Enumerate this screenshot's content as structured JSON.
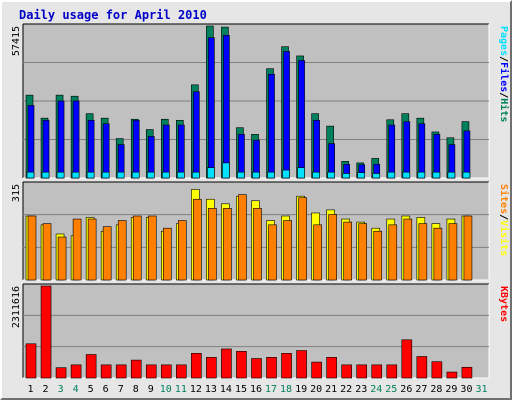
{
  "title": "Daily usage for April 2010",
  "colors": {
    "hits": "#00805c",
    "files": "#0000ff",
    "pages": "#00e0ff",
    "visits": "#ffff00",
    "sites": "#ff8000",
    "kbytes": "#ff0000",
    "plot_bg": "#c0c0c0",
    "weekend_label": "#00805c",
    "weekday_label": "#000000"
  },
  "legends": {
    "top": [
      {
        "label": "Pages",
        "color": "#00e0ff"
      },
      {
        "label": "/",
        "color": "#000000"
      },
      {
        "label": "Files",
        "color": "#0000ff"
      },
      {
        "label": "/",
        "color": "#000000"
      },
      {
        "label": "Hits",
        "color": "#00805c"
      }
    ],
    "middle": [
      {
        "label": "Sites",
        "color": "#ff8000"
      },
      {
        "label": "/",
        "color": "#000000"
      },
      {
        "label": "Visits",
        "color": "#ffff00"
      }
    ],
    "bottom": [
      {
        "label": "KBytes",
        "color": "#ff0000"
      }
    ]
  },
  "chart_data": {
    "type": "bar",
    "title": "Daily usage for April 2010",
    "categories": [
      "1",
      "2",
      "3",
      "4",
      "5",
      "6",
      "7",
      "8",
      "9",
      "10",
      "11",
      "12",
      "13",
      "14",
      "15",
      "16",
      "17",
      "18",
      "19",
      "20",
      "21",
      "22",
      "23",
      "24",
      "25",
      "26",
      "27",
      "28",
      "29",
      "30",
      "31"
    ],
    "weekend_days": [
      "3",
      "4",
      "10",
      "11",
      "17",
      "18",
      "24",
      "25",
      "31"
    ],
    "panels": [
      {
        "name": "top",
        "max_label": "57415",
        "ylim": [
          0,
          57415
        ],
        "series": [
          {
            "name": "Hits",
            "values": [
              31300,
              22600,
              31300,
              30900,
              24300,
              22600,
              14900,
              22200,
              18300,
              22200,
              21800,
              35200,
              57415,
              57000,
              19000,
              16500,
              41300,
              49600,
              46100,
              24300,
              19600,
              6300,
              5700,
              7400,
              22000,
              24300,
              22600,
              17400,
              15200,
              21300,
              0
            ]
          },
          {
            "name": "Files",
            "values": [
              27400,
              21800,
              29100,
              29100,
              21800,
              20500,
              12600,
              21800,
              15700,
              20000,
              20000,
              32600,
              53000,
              53900,
              16500,
              14300,
              39200,
              47800,
              44400,
              21800,
              13000,
              5200,
              5000,
              5200,
              20000,
              21300,
              20500,
              16500,
              12600,
              17800,
              0
            ]
          },
          {
            "name": "Pages",
            "values": [
              2200,
              2200,
              2200,
              2200,
              2200,
              2200,
              2200,
              2200,
              2200,
              2200,
              2200,
              2200,
              3900,
              5700,
              2200,
              2200,
              2200,
              3000,
              3900,
              2200,
              2200,
              1700,
              2000,
              1700,
              2200,
              2200,
              2200,
              2200,
              2200,
              2200,
              0
            ]
          }
        ]
      },
      {
        "name": "middle",
        "max_label": "315",
        "ylim": [
          0,
          315
        ],
        "series": [
          {
            "name": "Visits",
            "values": [
              210,
              181,
              151,
              145,
              205,
              160,
              181,
              205,
              205,
              160,
              185,
              297,
              265,
              250,
              275,
              260,
              195,
              210,
              275,
              220,
              230,
              200,
              190,
              170,
              200,
              210,
              205,
              185,
              200,
              210,
              0
            ]
          },
          {
            "name": "Sites",
            "values": [
              210,
              185,
              141,
              200,
              200,
              175,
              195,
              210,
              210,
              170,
              195,
              265,
              235,
              235,
              280,
              235,
              181,
              195,
              270,
              181,
              215,
              190,
              185,
              160,
              181,
              200,
              185,
              170,
              185,
              210,
              0
            ]
          }
        ]
      },
      {
        "name": "bottom",
        "max_label": "2311616",
        "ylim": [
          0,
          2311616
        ],
        "series": [
          {
            "name": "KBytes",
            "values": [
              860000,
              2311616,
              260000,
              330000,
              590000,
              330000,
              330000,
              450000,
              330000,
              330000,
              330000,
              620000,
              520000,
              730000,
              670000,
              490000,
              520000,
              620000,
              690000,
              400000,
              520000,
              330000,
              330000,
              330000,
              330000,
              960000,
              540000,
              410000,
              150000,
              270000,
              0
            ]
          }
        ]
      }
    ]
  }
}
